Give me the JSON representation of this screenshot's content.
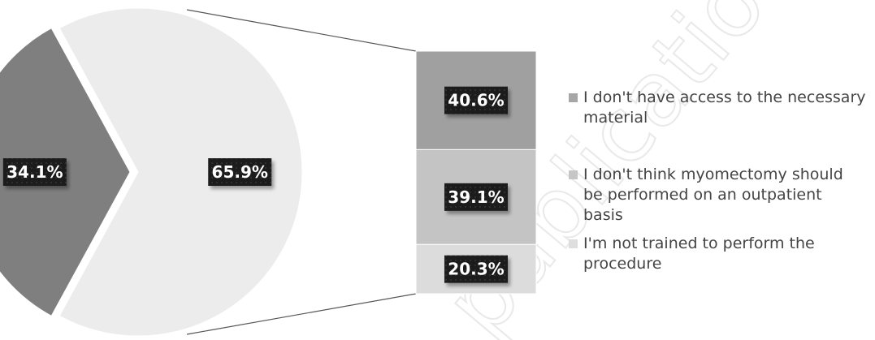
{
  "chart_data": {
    "type": "pie",
    "subtype": "bar-of-pie",
    "main_pie": {
      "slices": [
        {
          "label_text": "34.1%",
          "value": 34.1,
          "color": "#7f7f7f"
        },
        {
          "label_text": "65.9%",
          "value": 65.9,
          "color": "#ececec"
        }
      ]
    },
    "breakdown_bar": {
      "segments": [
        {
          "label_text": "40.6%",
          "value": 40.6,
          "color": "#a0a0a0",
          "legend": "I don't have access to the necessary material",
          "legend_lines": [
            "I don't have access to the necessary",
            "material"
          ]
        },
        {
          "label_text": "39.1%",
          "value": 39.1,
          "color": "#c4c4c4",
          "legend": "I don't think myomectomy should be performed on an outpatient basis",
          "legend_lines": [
            "I don't think myomectomy should",
            "be performed on an outpatient",
            "basis"
          ]
        },
        {
          "label_text": "20.3%",
          "value": 20.3,
          "color": "#dcdcdc",
          "legend": "I'm not trained to perform the procedure",
          "legend_lines": [
            "I'm not trained to perform the",
            "procedure"
          ]
        }
      ]
    },
    "legend_position": "right",
    "legend_colors": [
      "#a6a6a6",
      "#c6c6c6",
      "#dedede"
    ],
    "watermark": "publication"
  }
}
